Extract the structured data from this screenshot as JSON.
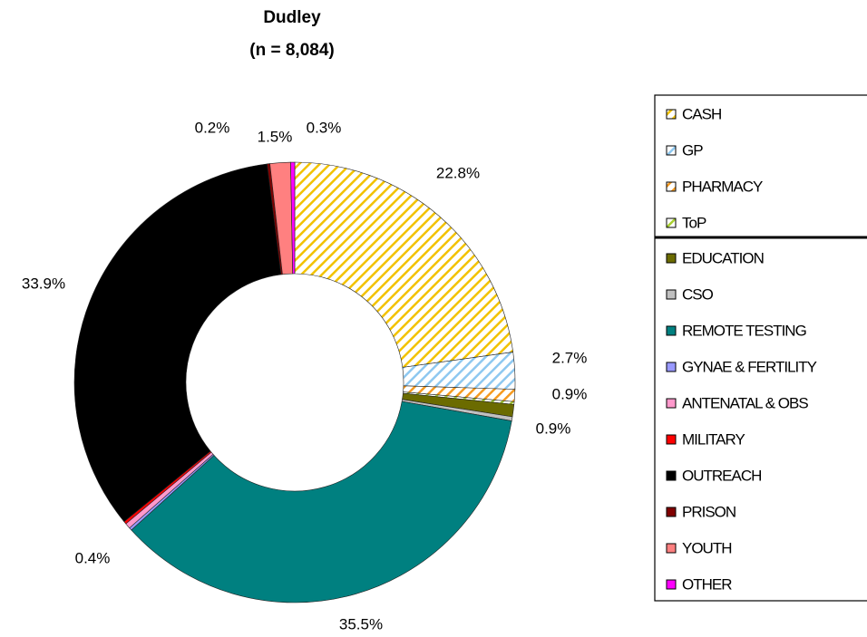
{
  "chart_data": {
    "type": "donut",
    "title": "Dudley",
    "subtitle": "(n = 8,084)",
    "categories": [
      "CASH",
      "GP",
      "PHARMACY",
      "ToP",
      "EDUCATION",
      "CSO",
      "REMOTE TESTING",
      "GYNAE & FERTILITY",
      "ANTENATAL & OBS",
      "MILITARY",
      "OUTREACH",
      "PRISON",
      "YOUTH",
      "OTHER"
    ],
    "values": [
      22.8,
      2.7,
      0.9,
      0.2,
      0.9,
      0.3,
      35.5,
      0.2,
      0.4,
      0.2,
      33.9,
      0.2,
      1.5,
      0.3
    ],
    "value_labels": [
      "22.8%",
      "2.7%",
      "0.9%",
      null,
      "0.9%",
      null,
      "35.5%",
      null,
      "0.4%",
      null,
      "33.9%",
      "0.2%",
      "1.5%",
      "0.3%"
    ],
    "colors": [
      "#f2c200",
      "#8ec8f0",
      "#f59a20",
      "#a8d030",
      "#6b6b00",
      "#c0c0c0",
      "#008080",
      "#9999ff",
      "#ff99cc",
      "#ff0000",
      "#000000",
      "#800000",
      "#ff8080",
      "#ff00ff"
    ],
    "hatched": [
      true,
      true,
      true,
      true,
      false,
      false,
      false,
      false,
      false,
      false,
      false,
      false,
      false,
      false
    ],
    "legend": "right"
  }
}
